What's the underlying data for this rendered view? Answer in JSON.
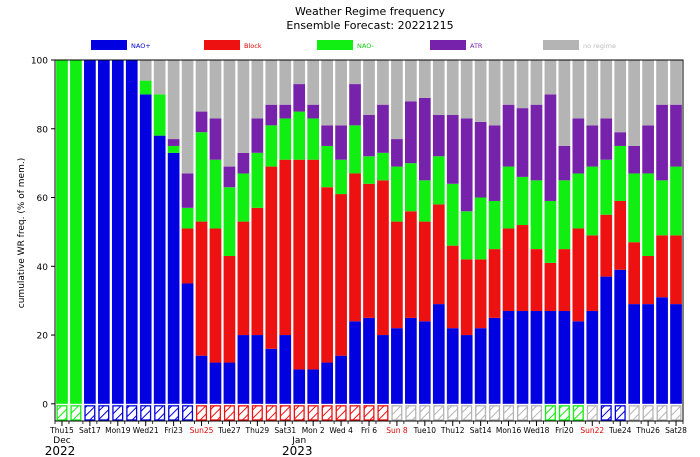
{
  "chart_data": {
    "type": "bar",
    "stacked": true,
    "title": "Weather Regime frequency",
    "subtitle": "Ensemble Forecast: 20221215",
    "ylabel": "cumulative WR freq. (% of mem.)",
    "ylim": [
      -5,
      100
    ],
    "yticks": [
      0,
      20,
      40,
      60,
      80,
      100
    ],
    "regime_colors": {
      "NAO+": "#0000e0",
      "Block": "#ee1111",
      "NAO-": "#11ee11",
      "ATR": "#7722aa",
      "no regime": "#b4b4b4"
    },
    "legend_text_colors": {
      "NAO+": "#0000cc",
      "Block": "#dd0000",
      "NAO-": "#11cc11",
      "ATR": "#7722aa",
      "no regime": "#bbbbbb"
    },
    "legend": [
      "NAO+",
      "Block",
      "NAO-",
      "ATR",
      "no regime"
    ],
    "series": [
      {
        "name": "NAO+",
        "values": [
          0,
          0,
          100,
          100,
          100,
          100,
          90,
          78,
          73,
          35,
          14,
          12,
          12,
          20,
          20,
          16,
          20,
          10,
          10,
          12,
          14,
          24,
          25,
          20,
          22,
          25,
          24,
          29,
          22,
          20,
          22,
          25,
          27,
          27,
          27,
          27,
          27,
          24,
          27,
          37,
          39,
          29,
          29,
          31,
          29
        ]
      },
      {
        "name": "Block",
        "values": [
          0,
          0,
          0,
          0,
          0,
          0,
          0,
          0,
          0,
          16,
          39,
          39,
          31,
          33,
          37,
          53,
          51,
          61,
          61,
          51,
          47,
          43,
          39,
          45,
          31,
          31,
          29,
          29,
          24,
          22,
          20,
          20,
          24,
          25,
          18,
          14,
          18,
          27,
          22,
          18,
          20,
          18,
          14,
          18,
          20
        ]
      },
      {
        "name": "NAO-",
        "values": [
          100,
          100,
          0,
          0,
          0,
          0,
          4,
          12,
          2,
          6,
          26,
          20,
          20,
          14,
          16,
          12,
          12,
          14,
          12,
          12,
          10,
          14,
          8,
          8,
          16,
          14,
          12,
          14,
          18,
          14,
          18,
          14,
          18,
          14,
          20,
          18,
          20,
          16,
          20,
          16,
          16,
          20,
          24,
          16,
          20
        ]
      },
      {
        "name": "ATR",
        "values": [
          0,
          0,
          0,
          0,
          0,
          0,
          0,
          0,
          2,
          10,
          6,
          12,
          6,
          6,
          10,
          6,
          4,
          8,
          4,
          6,
          10,
          12,
          12,
          14,
          8,
          18,
          24,
          12,
          20,
          27,
          22,
          22,
          18,
          20,
          22,
          31,
          10,
          16,
          12,
          12,
          4,
          8,
          14,
          22,
          18
        ]
      },
      {
        "name": "no regime",
        "values": [
          0,
          0,
          0,
          0,
          0,
          0,
          6,
          10,
          23,
          33,
          15,
          17,
          31,
          27,
          17,
          13,
          13,
          7,
          13,
          19,
          19,
          7,
          16,
          13,
          23,
          12,
          11,
          16,
          16,
          17,
          18,
          19,
          13,
          14,
          13,
          10,
          25,
          17,
          19,
          17,
          21,
          25,
          19,
          13,
          13
        ]
      }
    ],
    "dominant_regime": [
      "NAO-",
      "NAO-",
      "NAO+",
      "NAO+",
      "NAO+",
      "NAO+",
      "NAO+",
      "NAO+",
      "NAO+",
      "NAO+",
      "Block",
      "Block",
      "Block",
      "Block",
      "Block",
      "Block",
      "Block",
      "Block",
      "Block",
      "Block",
      "Block",
      "Block",
      "Block",
      "Block",
      "no regime",
      "no regime",
      "no regime",
      "no regime",
      "no regime",
      "no regime",
      "no regime",
      "no regime",
      "no regime",
      "no regime",
      "no regime",
      "NAO-",
      "NAO-",
      "NAO-",
      "no regime",
      "NAO+",
      "NAO+",
      "no regime",
      "no regime",
      "no regime",
      "no regime"
    ],
    "xtick_labels": [
      {
        "day": 0,
        "text": "Thu15",
        "color": "#000000"
      },
      {
        "day": 2,
        "text": "Sat17",
        "color": "#000000"
      },
      {
        "day": 4,
        "text": "Mon19",
        "color": "#000000"
      },
      {
        "day": 6,
        "text": "Wed21",
        "color": "#000000"
      },
      {
        "day": 8,
        "text": "Fri23",
        "color": "#000000"
      },
      {
        "day": 10,
        "text": "Sun25",
        "color": "#dd0000"
      },
      {
        "day": 12,
        "text": "Tue27",
        "color": "#000000"
      },
      {
        "day": 14,
        "text": "Thu29",
        "color": "#000000"
      },
      {
        "day": 16,
        "text": "Sat31",
        "color": "#000000"
      },
      {
        "day": 18,
        "text": "Mon 2",
        "color": "#000000"
      },
      {
        "day": 20,
        "text": "Wed 4",
        "color": "#000000"
      },
      {
        "day": 22,
        "text": "Fri 6",
        "color": "#000000"
      },
      {
        "day": 24,
        "text": "Sun 8",
        "color": "#dd0000"
      },
      {
        "day": 26,
        "text": "Tue10",
        "color": "#000000"
      },
      {
        "day": 28,
        "text": "Thu12",
        "color": "#000000"
      },
      {
        "day": 30,
        "text": "Sat14",
        "color": "#000000"
      },
      {
        "day": 32,
        "text": "Mon16",
        "color": "#000000"
      },
      {
        "day": 34,
        "text": "Wed18",
        "color": "#000000"
      },
      {
        "day": 36,
        "text": "Fri20",
        "color": "#000000"
      },
      {
        "day": 38,
        "text": "Sun22",
        "color": "#dd0000"
      },
      {
        "day": 40,
        "text": "Tue24",
        "color": "#000000"
      },
      {
        "day": 42,
        "text": "Thu26",
        "color": "#000000"
      },
      {
        "day": 44,
        "text": "Sat28",
        "color": "#000000"
      }
    ],
    "month_labels": [
      {
        "day": 0,
        "month": "Dec",
        "year": "2022"
      },
      {
        "day": 17,
        "month": "Jan",
        "year": "2023"
      }
    ]
  }
}
